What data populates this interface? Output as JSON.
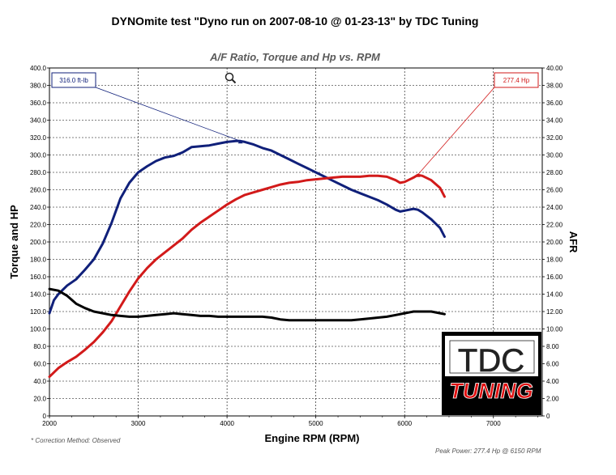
{
  "chart_data": {
    "type": "line",
    "title": "DYNOmite test \"Dyno run on 2007-08-10 @ 01-23-13\" by TDC Tuning",
    "subtitle": "A/F Ratio, Torque and Hp vs. RPM",
    "xlabel": "Engine RPM (RPM)",
    "ylabel": "Torque and HP",
    "y2label": "AFR",
    "xlim": [
      2000,
      7550
    ],
    "ylim": [
      0,
      400
    ],
    "y2lim": [
      0,
      40
    ],
    "x_ticks": [
      "2000",
      "3000",
      "4000",
      "5000",
      "6000",
      "7000"
    ],
    "y_ticks": [
      "0",
      "20.0",
      "40.0",
      "60.0",
      "80.0",
      "100.0",
      "120.0",
      "140.0",
      "160.0",
      "180.0",
      "200.0",
      "220.0",
      "240.0",
      "260.0",
      "280.0",
      "300.0",
      "320.0",
      "340.0",
      "360.0",
      "380.0",
      "400.0"
    ],
    "y2_ticks": [
      "0",
      "2.00",
      "4.00",
      "6.00",
      "8.00",
      "10.00",
      "12.00",
      "14.00",
      "16.00",
      "18.00",
      "20.00",
      "22.00",
      "24.00",
      "26.00",
      "28.00",
      "30.00",
      "32.00",
      "34.00",
      "36.00",
      "38.00",
      "40.00"
    ],
    "grid": true,
    "series": [
      {
        "color": "#10207a",
        "axis": "left",
        "points": [
          [
            2000,
            118
          ],
          [
            2050,
            133
          ],
          [
            2100,
            140
          ],
          [
            2200,
            150
          ],
          [
            2300,
            157
          ],
          [
            2400,
            168
          ],
          [
            2500,
            180
          ],
          [
            2600,
            198
          ],
          [
            2700,
            222
          ],
          [
            2800,
            250
          ],
          [
            2900,
            268
          ],
          [
            3000,
            280
          ],
          [
            3100,
            287
          ],
          [
            3200,
            293
          ],
          [
            3300,
            297
          ],
          [
            3400,
            299
          ],
          [
            3500,
            303
          ],
          [
            3600,
            309
          ],
          [
            3700,
            310
          ],
          [
            3800,
            311
          ],
          [
            3900,
            313
          ],
          [
            4000,
            315
          ],
          [
            4100,
            316
          ],
          [
            4150,
            316
          ],
          [
            4200,
            315
          ],
          [
            4300,
            312
          ],
          [
            4400,
            308
          ],
          [
            4500,
            305
          ],
          [
            4600,
            300
          ],
          [
            4700,
            295
          ],
          [
            4800,
            290
          ],
          [
            4900,
            285
          ],
          [
            5000,
            280
          ],
          [
            5100,
            275
          ],
          [
            5200,
            270
          ],
          [
            5300,
            265
          ],
          [
            5400,
            260
          ],
          [
            5500,
            256
          ],
          [
            5600,
            252
          ],
          [
            5700,
            248
          ],
          [
            5800,
            243
          ],
          [
            5900,
            237
          ],
          [
            5950,
            235
          ],
          [
            6000,
            236
          ],
          [
            6100,
            238
          ],
          [
            6150,
            237
          ],
          [
            6200,
            234
          ],
          [
            6300,
            226
          ],
          [
            6400,
            216
          ],
          [
            6450,
            206
          ]
        ]
      },
      {
        "color": "#d21a1a",
        "axis": "left",
        "points": [
          [
            2000,
            45
          ],
          [
            2100,
            55
          ],
          [
            2200,
            62
          ],
          [
            2300,
            68
          ],
          [
            2400,
            76
          ],
          [
            2500,
            85
          ],
          [
            2600,
            96
          ],
          [
            2700,
            109
          ],
          [
            2800,
            126
          ],
          [
            2900,
            143
          ],
          [
            3000,
            158
          ],
          [
            3100,
            170
          ],
          [
            3200,
            180
          ],
          [
            3300,
            188
          ],
          [
            3400,
            196
          ],
          [
            3500,
            204
          ],
          [
            3600,
            214
          ],
          [
            3700,
            222
          ],
          [
            3800,
            229
          ],
          [
            3900,
            236
          ],
          [
            4000,
            243
          ],
          [
            4100,
            249
          ],
          [
            4200,
            254
          ],
          [
            4300,
            257
          ],
          [
            4400,
            260
          ],
          [
            4500,
            263
          ],
          [
            4600,
            266
          ],
          [
            4700,
            268
          ],
          [
            4800,
            269
          ],
          [
            4900,
            271
          ],
          [
            5000,
            272
          ],
          [
            5100,
            273
          ],
          [
            5200,
            274
          ],
          [
            5300,
            275
          ],
          [
            5400,
            275
          ],
          [
            5500,
            275
          ],
          [
            5600,
            276
          ],
          [
            5700,
            276
          ],
          [
            5800,
            275
          ],
          [
            5900,
            271
          ],
          [
            5950,
            268
          ],
          [
            6000,
            269
          ],
          [
            6100,
            274
          ],
          [
            6150,
            277
          ],
          [
            6200,
            276
          ],
          [
            6300,
            271
          ],
          [
            6400,
            262
          ],
          [
            6450,
            252
          ]
        ]
      },
      {
        "color": "#000000",
        "axis": "right",
        "points": [
          [
            2000,
            14.6
          ],
          [
            2100,
            14.4
          ],
          [
            2200,
            13.8
          ],
          [
            2300,
            12.9
          ],
          [
            2400,
            12.4
          ],
          [
            2500,
            12.0
          ],
          [
            2600,
            11.8
          ],
          [
            2700,
            11.6
          ],
          [
            2800,
            11.5
          ],
          [
            2900,
            11.4
          ],
          [
            3000,
            11.4
          ],
          [
            3100,
            11.5
          ],
          [
            3200,
            11.6
          ],
          [
            3300,
            11.7
          ],
          [
            3400,
            11.8
          ],
          [
            3500,
            11.7
          ],
          [
            3600,
            11.6
          ],
          [
            3700,
            11.5
          ],
          [
            3800,
            11.5
          ],
          [
            3900,
            11.4
          ],
          [
            4000,
            11.4
          ],
          [
            4200,
            11.4
          ],
          [
            4400,
            11.4
          ],
          [
            4500,
            11.3
          ],
          [
            4600,
            11.1
          ],
          [
            4700,
            11.0
          ],
          [
            4800,
            11.0
          ],
          [
            5000,
            11.0
          ],
          [
            5200,
            11.0
          ],
          [
            5400,
            11.0
          ],
          [
            5500,
            11.1
          ],
          [
            5600,
            11.2
          ],
          [
            5700,
            11.3
          ],
          [
            5800,
            11.4
          ],
          [
            5900,
            11.6
          ],
          [
            6000,
            11.8
          ],
          [
            6100,
            12.0
          ],
          [
            6200,
            12.0
          ],
          [
            6300,
            12.0
          ],
          [
            6400,
            11.8
          ],
          [
            6450,
            11.7
          ]
        ]
      }
    ],
    "annotations": [
      {
        "text": "316.0 ft-lb",
        "x": 4150,
        "y": 316,
        "color": "#10207a"
      },
      {
        "text": "277.4 Hp",
        "x": 6150,
        "y": 277.4,
        "color": "#d21a1a"
      }
    ],
    "footnote_left": "* Correction Method: Observed",
    "footnote_right": "Peak Power: 277.4 Hp @ 6150 RPM"
  },
  "logo": {
    "name": "TDC TUNING",
    "colors": {
      "frame": "#000000",
      "tdc_bg": "#ffffff",
      "tdc_text": "#222222",
      "tuning_bg": "#000000",
      "tuning_text": "#e01010"
    }
  },
  "icons": {
    "zoom": "magnifier-icon"
  }
}
